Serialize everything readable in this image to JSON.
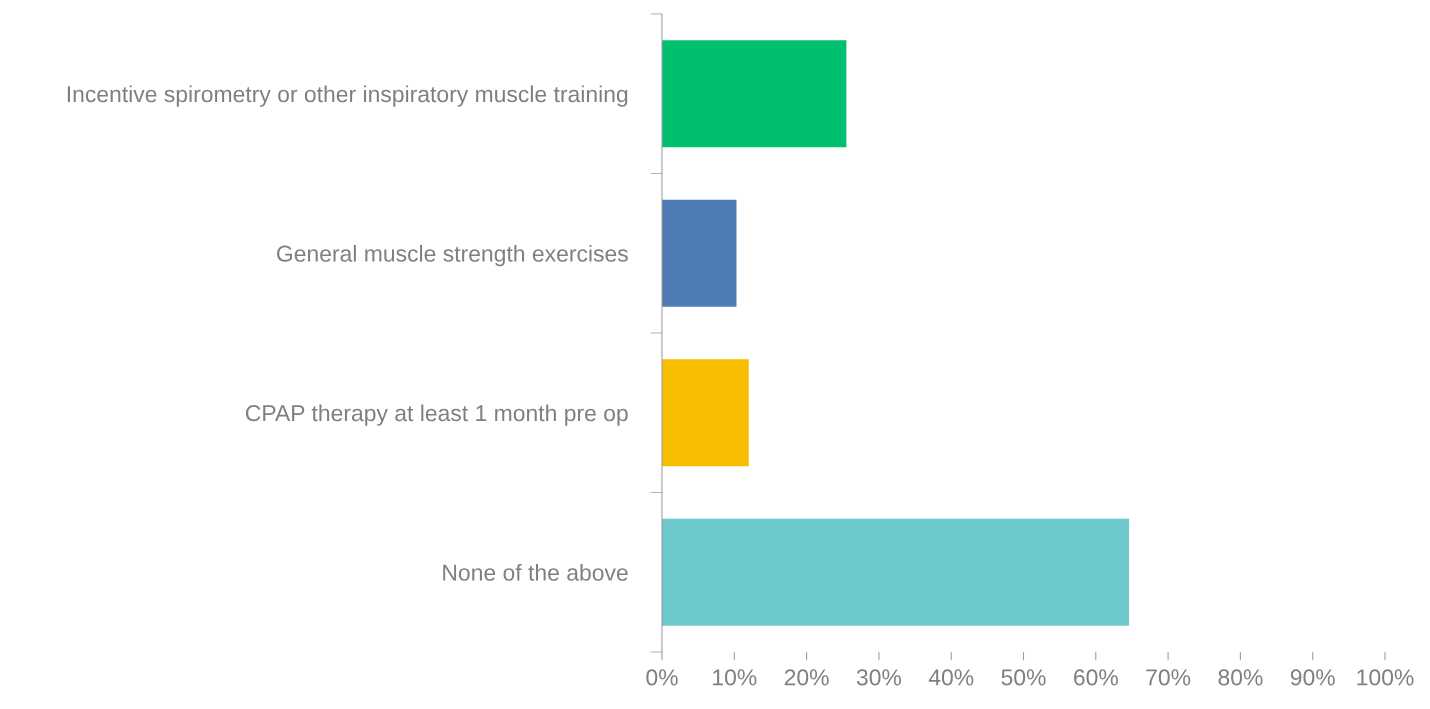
{
  "chart_data": {
    "type": "bar",
    "orientation": "horizontal",
    "categories": [
      "Incentive spirometry or other inspiratory muscle training",
      "General muscle strength exercises",
      "CPAP therapy at least 1 month pre op",
      "None of the above"
    ],
    "values": [
      25.5,
      10.3,
      12,
      64.6
    ],
    "colors": [
      "#00bf6f",
      "#4f7bb5",
      "#f7be00",
      "#6cc8cd"
    ],
    "xlim": [
      0,
      100
    ],
    "xticks": [
      {
        "value": 0,
        "label": "0%"
      },
      {
        "value": 10,
        "label": "10%"
      },
      {
        "value": 20,
        "label": "20%"
      },
      {
        "value": 30,
        "label": "30%"
      },
      {
        "value": 40,
        "label": "40%"
      },
      {
        "value": 50,
        "label": "50%"
      },
      {
        "value": 60,
        "label": "60%"
      },
      {
        "value": 70,
        "label": "70%"
      },
      {
        "value": 80,
        "label": "80%"
      },
      {
        "value": 90,
        "label": "90%"
      },
      {
        "value": 100,
        "label": "100%"
      }
    ],
    "grid": false,
    "legend": false
  }
}
